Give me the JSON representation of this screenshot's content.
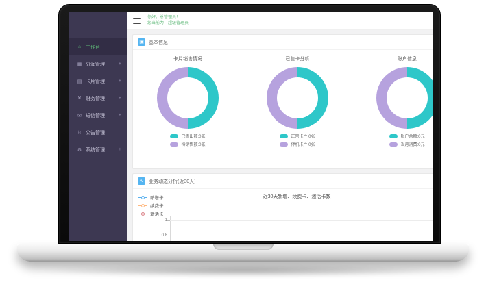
{
  "colors": {
    "donut_teal": "#2ec7c9",
    "donut_purple": "#b6a2de",
    "accent_green": "#5FB878",
    "panel_icon_blue": "#55b5f1",
    "sidebar_bg": "#3d3852",
    "line_new": "#5ab1ef",
    "line_renew": "#ffb980",
    "line_activate": "#d87a80"
  },
  "header": {
    "greeting_line1": "你好，总管理员！",
    "greeting_line2": "您当前为：超级管理员"
  },
  "sidebar": {
    "expand_glyph": "+",
    "items": [
      {
        "label": "工作台",
        "icon": "⌂",
        "active": true,
        "expandable": false
      },
      {
        "label": "分润管理",
        "icon": "▦",
        "active": false,
        "expandable": true
      },
      {
        "label": "卡片管理",
        "icon": "▤",
        "active": false,
        "expandable": true
      },
      {
        "label": "财务管理",
        "icon": "¥",
        "active": false,
        "expandable": true
      },
      {
        "label": "短信管理",
        "icon": "✉",
        "active": false,
        "expandable": true
      },
      {
        "label": "公告管理",
        "icon": "⚐",
        "active": false,
        "expandable": false
      },
      {
        "label": "系统管理",
        "icon": "⚙",
        "active": false,
        "expandable": true
      }
    ]
  },
  "main": {
    "panel_basic": {
      "icon": "▣",
      "title": "基本信息"
    },
    "panel_trend": {
      "icon": "∿",
      "title": "业务动态分析(近30天)",
      "center_title": "近30天新增、续费卡、激活卡数",
      "yticks": [
        "1",
        "0.8"
      ],
      "legend": [
        {
          "label": "新增卡",
          "color": "#5ab1ef"
        },
        {
          "label": "续费卡",
          "color": "#ffb980"
        },
        {
          "label": "激活卡",
          "color": "#d87a80"
        }
      ]
    }
  },
  "chart_data": [
    {
      "type": "pie",
      "subtype": "donut",
      "title": "卡片销售情况",
      "slices": [
        {
          "label": "已售出数:0张",
          "display_value": 0,
          "value_pct": 50,
          "color": "#2ec7c9"
        },
        {
          "label": "待销售数:0张",
          "display_value": 0,
          "value_pct": 50,
          "color": "#b6a2de"
        }
      ],
      "legend_position": "bottom"
    },
    {
      "type": "pie",
      "subtype": "donut",
      "title": "已售卡分析",
      "slices": [
        {
          "label": "正常卡片:0张",
          "display_value": 0,
          "value_pct": 50,
          "color": "#2ec7c9"
        },
        {
          "label": "停机卡片:0张",
          "display_value": 0,
          "value_pct": 50,
          "color": "#b6a2de"
        }
      ],
      "legend_position": "bottom"
    },
    {
      "type": "pie",
      "subtype": "donut",
      "title": "账户信息",
      "slices": [
        {
          "label": "账户余额:0元",
          "display_value": 0,
          "value_pct": 50,
          "color": "#2ec7c9"
        },
        {
          "label": "当月消费:0元",
          "display_value": 0,
          "value_pct": 50,
          "color": "#b6a2de"
        }
      ],
      "legend_position": "bottom"
    },
    {
      "type": "line",
      "title": "近30天新增、续费卡、激活卡数",
      "series": [
        {
          "name": "新增卡",
          "color": "#5ab1ef",
          "values": []
        },
        {
          "name": "续费卡",
          "color": "#ffb980",
          "values": []
        },
        {
          "name": "激活卡",
          "color": "#d87a80",
          "values": []
        }
      ],
      "visible_yticks": [
        1,
        0.8
      ],
      "grid": true,
      "legend_position": "left",
      "note": "chart area empty / cut off at screen bottom edge"
    }
  ]
}
